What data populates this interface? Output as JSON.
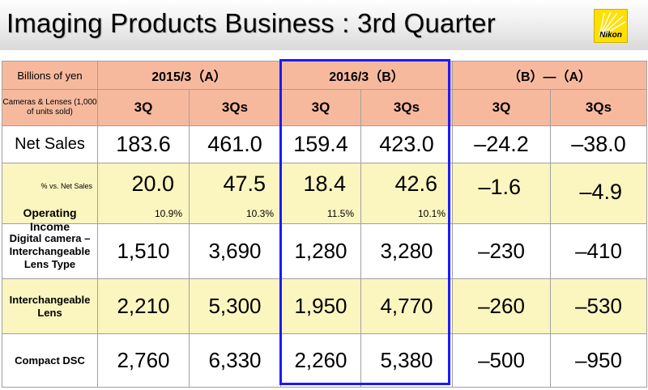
{
  "header": {
    "title": "Imaging Products Business : 3rd Quarter",
    "logo_text": "Nikon"
  },
  "table": {
    "units_label": "Billions of yen",
    "units_sub_label": "Cameras & Lenses (1,000 of units sold)",
    "groups": [
      "2015/3（A）",
      "2016/3（B）",
      "（B）―（A）"
    ],
    "subheaders": [
      "3Q",
      "3Qs",
      "3Q",
      "3Qs",
      "3Q",
      "3Qs"
    ],
    "rows": [
      {
        "label": "Net Sales",
        "values": [
          "183.6",
          "461.0",
          "159.4",
          "423.0",
          "–24.2",
          "–38.0"
        ]
      },
      {
        "label": "Operating Income",
        "note": "% vs. Net Sales",
        "values": [
          "20.0",
          "47.5",
          "18.4",
          "42.6",
          "–1.6",
          "–4.9"
        ],
        "percents": [
          "10.9%",
          "10.3%",
          "11.5%",
          "10.1%"
        ]
      },
      {
        "label": "Digital camera – Interchangeable Lens Type",
        "values": [
          "1,510",
          "3,690",
          "1,280",
          "3,280",
          "–230",
          "–410"
        ]
      },
      {
        "label": "Interchangeable Lens",
        "values": [
          "2,210",
          "5,300",
          "1,950",
          "4,770",
          "–260",
          "–530"
        ]
      },
      {
        "label": "Compact DSC",
        "values": [
          "2,760",
          "6,330",
          "2,260",
          "5,380",
          "–500",
          "–950"
        ]
      }
    ]
  },
  "colors": {
    "header_bg": "#f7b99e",
    "highlight_row_bg": "#fbf5bf",
    "highlight_frame": "#1a1aff",
    "logo_bg": "#ffe000"
  }
}
